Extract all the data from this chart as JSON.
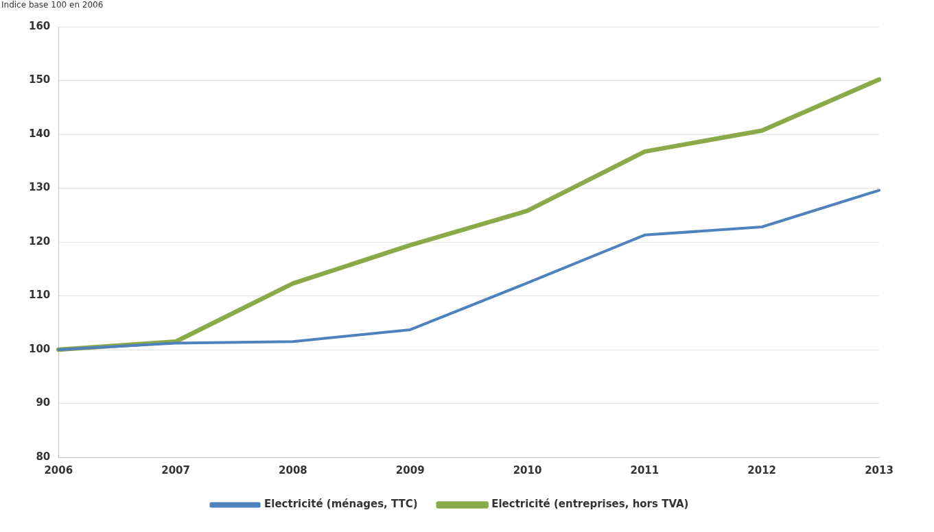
{
  "chart_data": {
    "type": "line",
    "ylabel": "Indice base 100 en 2006",
    "categories": [
      "2006",
      "2007",
      "2008",
      "2009",
      "2010",
      "2011",
      "2012",
      "2013"
    ],
    "series": [
      {
        "name": "Electricité (ménages, TTC)",
        "color": "#4f81bd",
        "values": [
          100,
          101.2,
          101.5,
          103.7,
          112.4,
          121.3,
          122.8,
          129.6
        ]
      },
      {
        "name": "Electricité (entreprises, hors TVA)",
        "color": "#8aaa4a",
        "values": [
          100,
          101.5,
          112.3,
          119.4,
          125.8,
          136.8,
          140.7,
          150.2
        ]
      }
    ],
    "ylim": [
      80,
      160
    ],
    "yticks": [
      80,
      90,
      100,
      110,
      120,
      130,
      140,
      150,
      160
    ],
    "grid": "y",
    "legend": "bottom",
    "marker": "none",
    "line_style": "solid"
  }
}
